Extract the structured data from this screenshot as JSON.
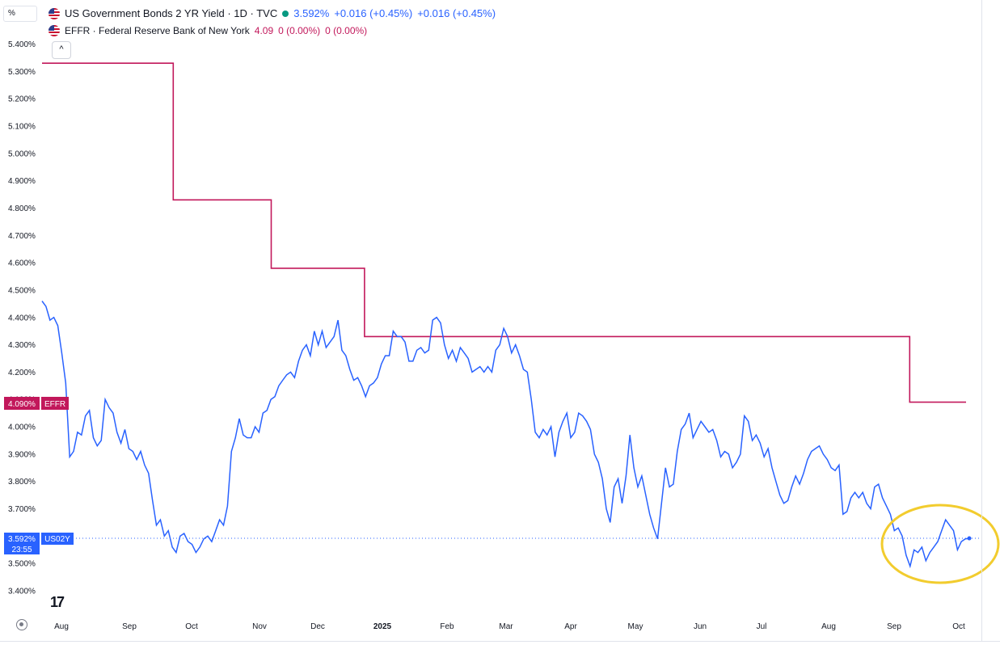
{
  "header": {
    "percent_label": "%",
    "series1": {
      "title": "US Government Bonds 2 YR Yield · 1D · TVC",
      "value": "3.592%",
      "change": "+0.016 (+0.45%)",
      "change2": "+0.016 (+0.45%)"
    },
    "series2": {
      "title": "EFFR · Federal Reserve Bank of New York",
      "value": "4.09",
      "change": "0 (0.00%)",
      "change2": "0 (0.00%)"
    },
    "collapse_label": "^"
  },
  "price_tags": {
    "effr_value": "4.090%",
    "effr_label": "EFFR",
    "us02y_value": "3.592%",
    "us02y_label": "US02Y",
    "countdown": "23:55"
  },
  "logo_text": "17",
  "colors": {
    "us02y": "#2962ff",
    "effr": "#c2185b",
    "highlight": "#f2cc2e"
  },
  "chart_data": {
    "type": "line",
    "x_ticks": [
      "Aug",
      "Sep",
      "Oct",
      "Nov",
      "Dec",
      "2025",
      "Feb",
      "Mar",
      "Apr",
      "May",
      "Jun",
      "Jul",
      "Aug",
      "Sep",
      "Oct"
    ],
    "y_ticks": [
      "5.400%",
      "5.300%",
      "5.200%",
      "5.100%",
      "5.000%",
      "4.900%",
      "4.800%",
      "4.700%",
      "4.600%",
      "4.500%",
      "4.400%",
      "4.300%",
      "4.200%",
      "4.100%",
      "4.000%",
      "3.900%",
      "3.800%",
      "3.700%",
      "3.600%",
      "3.500%",
      "3.400%"
    ],
    "ylim": [
      3.4,
      5.4
    ],
    "series": [
      {
        "name": "US02Y",
        "values": [
          4.46,
          4.44,
          4.39,
          4.4,
          4.37,
          4.27,
          4.16,
          3.89,
          3.91,
          3.98,
          3.97,
          4.04,
          4.06,
          3.96,
          3.93,
          3.95,
          4.1,
          4.07,
          4.05,
          3.98,
          3.94,
          3.99,
          3.92,
          3.91,
          3.88,
          3.91,
          3.86,
          3.83,
          3.73,
          3.64,
          3.66,
          3.6,
          3.62,
          3.56,
          3.54,
          3.6,
          3.61,
          3.58,
          3.57,
          3.54,
          3.56,
          3.59,
          3.6,
          3.58,
          3.62,
          3.66,
          3.64,
          3.71,
          3.91,
          3.96,
          4.03,
          3.97,
          3.96,
          3.96,
          4.0,
          3.98,
          4.05,
          4.06,
          4.1,
          4.11,
          4.15,
          4.17,
          4.19,
          4.2,
          4.18,
          4.24,
          4.28,
          4.3,
          4.26,
          4.35,
          4.3,
          4.35,
          4.29,
          4.31,
          4.33,
          4.39,
          4.28,
          4.26,
          4.21,
          4.17,
          4.18,
          4.15,
          4.11,
          4.15,
          4.16,
          4.18,
          4.23,
          4.26,
          4.26,
          4.35,
          4.33,
          4.33,
          4.31,
          4.24,
          4.24,
          4.28,
          4.29,
          4.27,
          4.28,
          4.39,
          4.4,
          4.38,
          4.3,
          4.25,
          4.28,
          4.24,
          4.29,
          4.27,
          4.25,
          4.2,
          4.21,
          4.22,
          4.2,
          4.22,
          4.2,
          4.28,
          4.3,
          4.36,
          4.33,
          4.27,
          4.3,
          4.26,
          4.21,
          4.2,
          4.1,
          3.98,
          3.96,
          3.99,
          3.97,
          4.0,
          3.89,
          3.98,
          4.02,
          4.05,
          3.96,
          3.98,
          4.05,
          4.04,
          4.02,
          3.99,
          3.9,
          3.87,
          3.81,
          3.7,
          3.65,
          3.78,
          3.81,
          3.72,
          3.82,
          3.97,
          3.85,
          3.78,
          3.82,
          3.75,
          3.68,
          3.63,
          3.59,
          3.72,
          3.85,
          3.78,
          3.79,
          3.91,
          3.99,
          4.01,
          4.05,
          3.96,
          3.99,
          4.02,
          4.0,
          3.98,
          3.99,
          3.95,
          3.89,
          3.91,
          3.9,
          3.85,
          3.87,
          3.9,
          4.04,
          4.02,
          3.95,
          3.97,
          3.94,
          3.89,
          3.92,
          3.85,
          3.8,
          3.75,
          3.72,
          3.73,
          3.78,
          3.82,
          3.79,
          3.83,
          3.88,
          3.91,
          3.92,
          3.93,
          3.9,
          3.88,
          3.85,
          3.84,
          3.86,
          3.68,
          3.69,
          3.74,
          3.76,
          3.74,
          3.76,
          3.72,
          3.7,
          3.78,
          3.79,
          3.74,
          3.71,
          3.68,
          3.62,
          3.63,
          3.6,
          3.53,
          3.49,
          3.55,
          3.54,
          3.56,
          3.51,
          3.54,
          3.56,
          3.58,
          3.62,
          3.66,
          3.64,
          3.62,
          3.55,
          3.58,
          3.59,
          3.592
        ]
      },
      {
        "name": "EFFR",
        "segments": [
          {
            "from": 0.0,
            "to": 0.142,
            "value": 5.33
          },
          {
            "from": 0.142,
            "to": 0.248,
            "value": 4.83
          },
          {
            "from": 0.248,
            "to": 0.349,
            "value": 4.58
          },
          {
            "from": 0.349,
            "to": 0.939,
            "value": 4.33
          },
          {
            "from": 0.939,
            "to": 1.0,
            "value": 4.09
          }
        ]
      }
    ],
    "reference_line": 3.592
  }
}
